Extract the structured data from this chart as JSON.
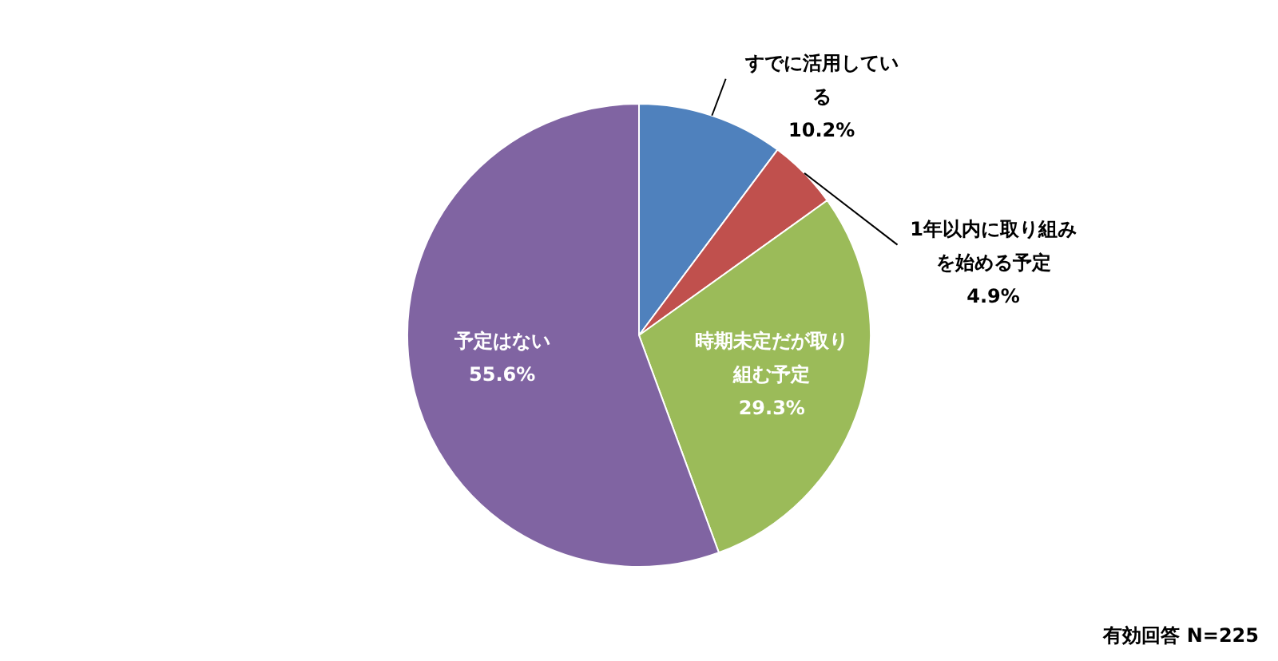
{
  "chart_data": {
    "type": "pie",
    "categories": [
      "すでに活用している",
      "1年以内に取り組みを始める予定",
      "時期未定だが取り組む予定",
      "予定はない"
    ],
    "values": [
      10.2,
      4.9,
      29.3,
      55.6
    ],
    "colors": [
      "#4f81bd",
      "#c0504d",
      "#9bbb59",
      "#8064a2"
    ],
    "value_labels": [
      "10.2%",
      "4.9%",
      "29.3%",
      "55.6%"
    ],
    "annotations": [
      "有効回答 N=225"
    ]
  }
}
